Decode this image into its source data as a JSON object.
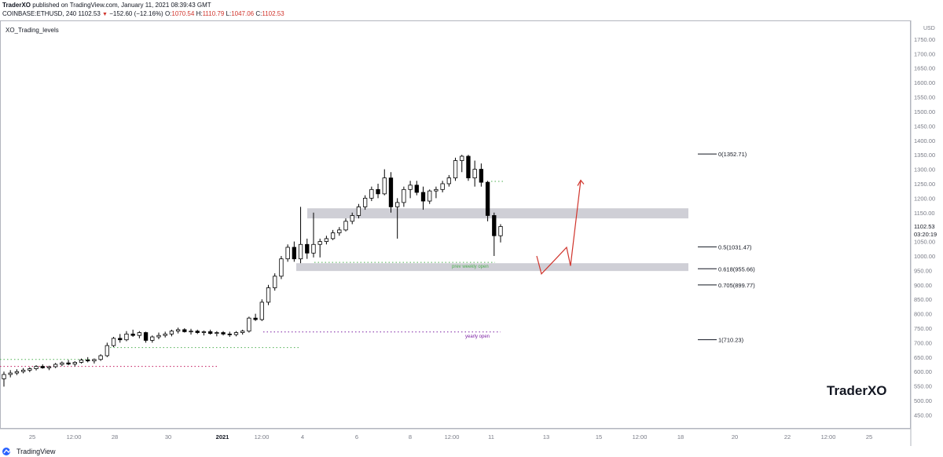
{
  "header": {
    "publisher": "TraderXO",
    "published_rest": "published on TradingView.com, January 11, 2021 08:39:43 GMT",
    "symbol_line": "COINBASE:ETHUSD, 240",
    "last_price": "1102.53",
    "change": "−152.60 (−12.16%)",
    "o_label": "O:",
    "o_value": "1070.54",
    "h_label": "H:",
    "h_value": "1110.79",
    "l_label": "L:",
    "l_value": "1047.06",
    "c_label": "C:",
    "c_value": "1102.53"
  },
  "indicator_label": "XO_Trading_levels",
  "watermark": "TraderXO",
  "footer": {
    "brand": "TradingView"
  },
  "colors": {
    "candle_up": "#ffffff",
    "candle_down": "#000000",
    "wick": "#000000",
    "zone": "#cfcfd6",
    "green_dots": "#4caf50",
    "purple_dots": "#7b1fa2",
    "pink_dots": "#c2185b",
    "arrow": "#d0342c",
    "axis_text": "#787b86",
    "price_tag": "#131722"
  },
  "chart_data": {
    "type": "candlestick",
    "price_axis": {
      "currency": "USD",
      "ticks": [
        "1800.00",
        "1750.00",
        "1700.00",
        "1650.00",
        "1600.00",
        "1550.00",
        "1500.00",
        "1450.00",
        "1400.00",
        "1350.00",
        "1300.00",
        "1250.00",
        "1200.00",
        "1150.00",
        "1100.00",
        "1050.00",
        "1000.00",
        "950.00",
        "900.00",
        "850.00",
        "800.00",
        "750.00",
        "700.00",
        "650.00",
        "600.00",
        "550.00",
        "500.00",
        "450.00"
      ],
      "range": [
        405,
        1815
      ],
      "last_price": 1102.53,
      "last_price_label": "1102.53",
      "countdown_label": "03:20:19"
    },
    "time_axis": {
      "ticks": [
        "25",
        "12:00",
        "28",
        "30",
        "2021",
        "12:00",
        "4",
        "6",
        "8",
        "12:00",
        "11",
        "13",
        "15",
        "12:00",
        "18",
        "20",
        "22",
        "12:00",
        "25"
      ],
      "bold_tick": "2021"
    },
    "fib_levels": [
      {
        "label": "0(1352.71)",
        "value": 1352.71
      },
      {
        "label": "0.5(1031.47)",
        "value": 1031.47
      },
      {
        "label": "0.618(955.66)",
        "value": 955.66
      },
      {
        "label": "0.705(899.77)",
        "value": 899.77
      },
      {
        "label": "1(710.23)",
        "value": 710.23
      }
    ],
    "zones": [
      {
        "from": 1130,
        "to": 1165
      },
      {
        "from": 948,
        "to": 975
      }
    ],
    "level_lines": [
      {
        "name": "yearly open",
        "value": 737,
        "color": "purple",
        "label": "yearly open"
      },
      {
        "name": "prev weekly open",
        "value": 978,
        "color": "green",
        "label": "prev weekly open"
      },
      {
        "name": "green upper-left",
        "value": 642,
        "color": "green",
        "label": ""
      },
      {
        "name": "green left",
        "value": 683,
        "color": "green",
        "label": ""
      },
      {
        "name": "pink left",
        "value": 618,
        "color": "pink",
        "label": ""
      },
      {
        "name": "green right of recent",
        "value": 1258,
        "color": "green",
        "label": ""
      }
    ],
    "candles": [
      [
        575,
        600,
        548,
        590
      ],
      [
        590,
        605,
        580,
        595
      ],
      [
        595,
        608,
        588,
        600
      ],
      [
        600,
        612,
        594,
        605
      ],
      [
        605,
        615,
        598,
        610
      ],
      [
        610,
        622,
        604,
        618
      ],
      [
        618,
        625,
        610,
        613
      ],
      [
        613,
        620,
        605,
        617
      ],
      [
        617,
        630,
        612,
        625
      ],
      [
        625,
        635,
        619,
        630
      ],
      [
        630,
        640,
        622,
        626
      ],
      [
        626,
        636,
        618,
        632
      ],
      [
        632,
        645,
        628,
        640
      ],
      [
        640,
        650,
        632,
        637
      ],
      [
        637,
        645,
        628,
        642
      ],
      [
        642,
        660,
        637,
        655
      ],
      [
        655,
        700,
        650,
        690
      ],
      [
        690,
        720,
        685,
        715
      ],
      [
        715,
        730,
        700,
        710
      ],
      [
        710,
        740,
        705,
        730
      ],
      [
        730,
        745,
        720,
        725
      ],
      [
        725,
        740,
        715,
        735
      ],
      [
        735,
        738,
        700,
        708
      ],
      [
        708,
        725,
        700,
        720
      ],
      [
        720,
        735,
        712,
        725
      ],
      [
        725,
        738,
        718,
        730
      ],
      [
        730,
        745,
        722,
        740
      ],
      [
        740,
        752,
        732,
        745
      ],
      [
        745,
        750,
        735,
        738
      ],
      [
        738,
        748,
        728,
        740
      ],
      [
        740,
        745,
        730,
        735
      ],
      [
        735,
        742,
        725,
        738
      ],
      [
        738,
        745,
        728,
        732
      ],
      [
        732,
        740,
        722,
        735
      ],
      [
        735,
        740,
        725,
        730
      ],
      [
        730,
        738,
        720,
        728
      ],
      [
        728,
        740,
        722,
        735
      ],
      [
        735,
        745,
        728,
        740
      ],
      [
        740,
        790,
        735,
        785
      ],
      [
        785,
        800,
        775,
        780
      ],
      [
        780,
        850,
        775,
        840
      ],
      [
        840,
        900,
        830,
        890
      ],
      [
        890,
        940,
        880,
        930
      ],
      [
        930,
        1000,
        920,
        990
      ],
      [
        990,
        1040,
        980,
        1030
      ],
      [
        1030,
        1050,
        980,
        990
      ],
      [
        990,
        1170,
        975,
        1040
      ],
      [
        1040,
        1060,
        990,
        1010
      ],
      [
        1010,
        1150,
        995,
        1040
      ],
      [
        1040,
        1060,
        995,
        1050
      ],
      [
        1050,
        1070,
        1040,
        1060
      ],
      [
        1060,
        1090,
        1055,
        1080
      ],
      [
        1080,
        1100,
        1070,
        1090
      ],
      [
        1090,
        1130,
        1085,
        1120
      ],
      [
        1120,
        1150,
        1110,
        1140
      ],
      [
        1140,
        1180,
        1130,
        1170
      ],
      [
        1170,
        1210,
        1160,
        1200
      ],
      [
        1200,
        1240,
        1190,
        1230
      ],
      [
        1230,
        1250,
        1200,
        1215
      ],
      [
        1215,
        1300,
        1210,
        1270
      ],
      [
        1270,
        1290,
        1150,
        1170
      ],
      [
        1170,
        1200,
        1060,
        1185
      ],
      [
        1185,
        1240,
        1170,
        1230
      ],
      [
        1230,
        1260,
        1200,
        1245
      ],
      [
        1245,
        1260,
        1210,
        1220
      ],
      [
        1220,
        1240,
        1160,
        1190
      ],
      [
        1190,
        1230,
        1180,
        1225
      ],
      [
        1225,
        1240,
        1200,
        1230
      ],
      [
        1230,
        1260,
        1220,
        1250
      ],
      [
        1250,
        1280,
        1240,
        1270
      ],
      [
        1270,
        1340,
        1260,
        1330
      ],
      [
        1330,
        1350,
        1290,
        1345
      ],
      [
        1345,
        1350,
        1260,
        1270
      ],
      [
        1270,
        1330,
        1240,
        1300
      ],
      [
        1300,
        1320,
        1240,
        1255
      ],
      [
        1255,
        1260,
        1120,
        1140
      ],
      [
        1140,
        1150,
        1000,
        1070
      ],
      [
        1070,
        1110,
        1047,
        1102
      ]
    ],
    "arrow_path_prices": [
      1000,
      938,
      995,
      1030,
      966,
      1262
    ]
  }
}
